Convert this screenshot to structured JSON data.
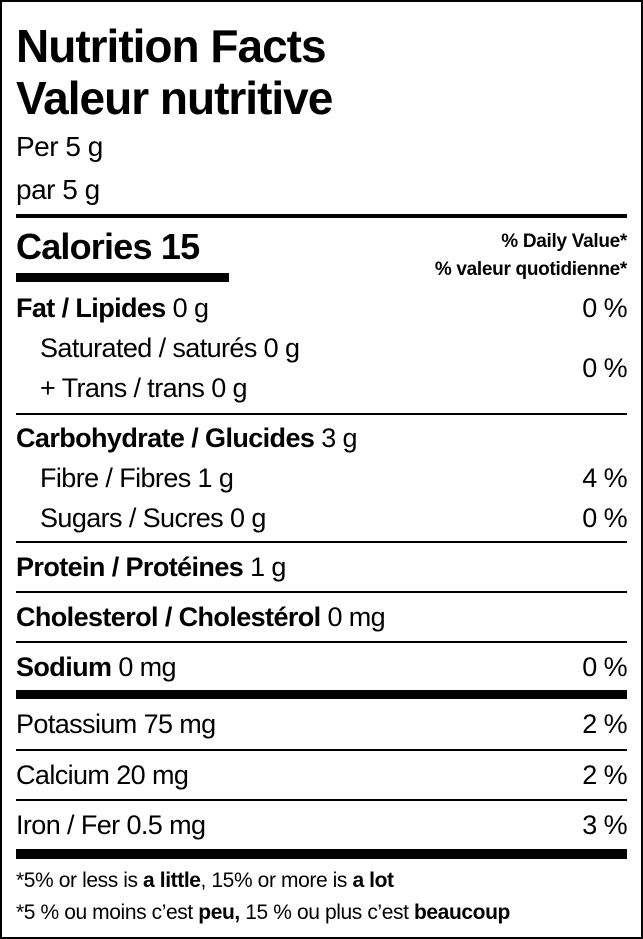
{
  "title_en": "Nutrition Facts",
  "title_fr": "Valeur nutritive",
  "serving_en": "Per 5 g",
  "serving_fr": "par 5 g",
  "calories_label": "Calories 15",
  "daily_value_en": "% Daily Value*",
  "daily_value_fr": "% valeur quotidienne*",
  "rows": [
    {
      "label": "Fat / Lipides",
      "amount": "0 g",
      "dv": "0 %"
    },
    {
      "label": "Saturated / saturés",
      "amount": "0 g"
    },
    {
      "label": "+ Trans / trans",
      "amount": "0 g",
      "dv": "0 %"
    },
    {
      "label": "Carbohydrate / Glucides",
      "amount": "3 g"
    },
    {
      "label": "Fibre / Fibres",
      "amount": "1 g",
      "dv": "4 %"
    },
    {
      "label": "Sugars / Sucres",
      "amount": "0 g",
      "dv": "0 %"
    },
    {
      "label": "Protein / Protéines",
      "amount": "1 g"
    },
    {
      "label": "Cholesterol / Cholestérol",
      "amount": "0 mg"
    },
    {
      "label": "Sodium",
      "amount": "0 mg",
      "dv": "0 %"
    },
    {
      "label": "Potassium",
      "amount": "75 mg",
      "dv": "2 %"
    },
    {
      "label": "Calcium",
      "amount": "20 mg",
      "dv": "2 %"
    },
    {
      "label": "Iron / Fer",
      "amount": "0.5 mg",
      "dv": "3 %"
    }
  ],
  "footnote_en": {
    "a": "*5% or less is ",
    "b": "a little",
    "c": ", 15% or more is ",
    "d": "a lot"
  },
  "footnote_fr": {
    "a": "*5 % ou moins c’est ",
    "b": "peu,",
    "c": " 15 % ou plus c’est ",
    "d": "beaucoup"
  }
}
